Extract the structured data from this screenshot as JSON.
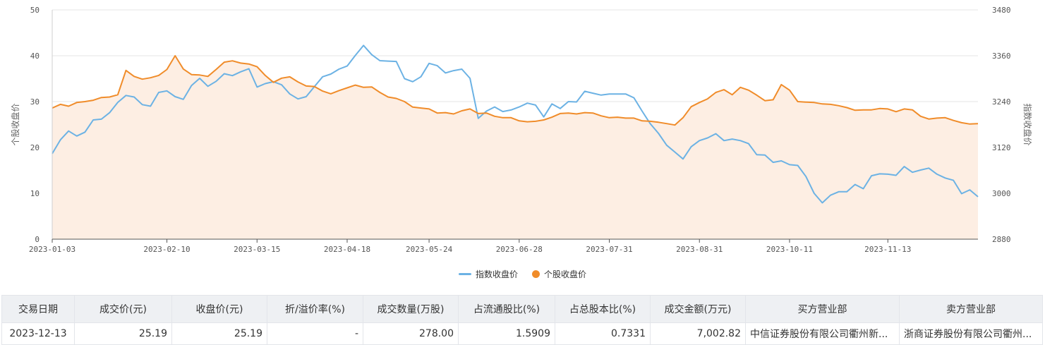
{
  "chart_data": {
    "type": "line",
    "x": [
      "2023-01-03",
      "2023-01-05",
      "2023-01-09",
      "2023-01-11",
      "2023-01-13",
      "2023-01-17",
      "2023-01-19",
      "2023-01-21",
      "2023-01-25",
      "2023-01-27",
      "2023-01-30",
      "2023-02-01",
      "2023-02-03",
      "2023-02-07",
      "2023-02-10",
      "2023-02-14",
      "2023-02-16",
      "2023-02-20",
      "2023-02-22",
      "2023-02-24",
      "2023-02-28",
      "2023-03-02",
      "2023-03-06",
      "2023-03-08",
      "2023-03-10",
      "2023-03-15",
      "2023-03-17",
      "2023-03-21",
      "2023-03-23",
      "2023-03-27",
      "2023-03-29",
      "2023-03-31",
      "2023-04-04",
      "2023-04-07",
      "2023-04-11",
      "2023-04-13",
      "2023-04-18",
      "2023-04-20",
      "2023-04-24",
      "2023-04-26",
      "2023-05-04",
      "2023-05-08",
      "2023-05-10",
      "2023-05-12",
      "2023-05-16",
      "2023-05-18",
      "2023-05-24",
      "2023-05-26",
      "2023-05-30",
      "2023-06-01",
      "2023-06-05",
      "2023-06-07",
      "2023-06-09",
      "2023-06-13",
      "2023-06-15",
      "2023-06-19",
      "2023-06-21",
      "2023-06-28",
      "2023-06-30",
      "2023-07-04",
      "2023-07-06",
      "2023-07-10",
      "2023-07-12",
      "2023-07-14",
      "2023-07-18",
      "2023-07-20",
      "2023-07-24",
      "2023-07-26",
      "2023-07-31",
      "2023-08-02",
      "2023-08-04",
      "2023-08-08",
      "2023-08-10",
      "2023-08-14",
      "2023-08-16",
      "2023-08-18",
      "2023-08-22",
      "2023-08-24",
      "2023-08-28",
      "2023-08-31",
      "2023-09-04",
      "2023-09-06",
      "2023-09-08",
      "2023-09-12",
      "2023-09-14",
      "2023-09-18",
      "2023-09-20",
      "2023-09-22",
      "2023-09-26",
      "2023-10-09",
      "2023-10-11",
      "2023-10-13",
      "2023-10-17",
      "2023-10-19",
      "2023-10-23",
      "2023-10-25",
      "2023-10-27",
      "2023-10-31",
      "2023-11-02",
      "2023-11-06",
      "2023-11-08",
      "2023-11-10",
      "2023-11-13",
      "2023-11-15",
      "2023-11-17",
      "2023-11-21",
      "2023-11-23",
      "2023-11-27",
      "2023-11-29",
      "2023-12-01",
      "2023-12-05",
      "2023-12-07",
      "2023-12-11",
      "2023-12-13"
    ],
    "series": [
      {
        "name": "指数收盘价",
        "axis": "right",
        "color": "#6cb2e4",
        "values": [
          3104,
          3140,
          3163,
          3150,
          3160,
          3192,
          3194,
          3211,
          3238,
          3256,
          3252,
          3232,
          3228,
          3264,
          3268,
          3253,
          3246,
          3282,
          3301,
          3280,
          3293,
          3313,
          3308,
          3318,
          3326,
          3278,
          3287,
          3292,
          3284,
          3260,
          3247,
          3253,
          3279,
          3305,
          3312,
          3325,
          3333,
          3361,
          3387,
          3363,
          3347,
          3346,
          3345,
          3300,
          3292,
          3305,
          3340,
          3334,
          3315,
          3321,
          3325,
          3301,
          3196,
          3215,
          3226,
          3214,
          3218,
          3226,
          3236,
          3231,
          3200,
          3234,
          3222,
          3240,
          3239,
          3267,
          3262,
          3257,
          3260,
          3260,
          3260,
          3250,
          3215,
          3182,
          3157,
          3126,
          3108,
          3090,
          3122,
          3138,
          3145,
          3156,
          3138,
          3142,
          3138,
          3130,
          3101,
          3100,
          3081,
          3085,
          3075,
          3073,
          3044,
          3000,
          2975,
          2995,
          3004,
          3004,
          3023,
          3012,
          3046,
          3051,
          3050,
          3047,
          3070,
          3055,
          3061,
          3066,
          3050,
          3040,
          3034,
          2999,
          3009,
          2991
        ]
      },
      {
        "name": "个股收盘价",
        "axis": "left",
        "color": "#f08c2a",
        "values": [
          28.6,
          29.4,
          29.0,
          29.8,
          30.0,
          30.3,
          30.9,
          31.0,
          31.5,
          36.8,
          35.5,
          34.9,
          35.2,
          35.7,
          37.0,
          40.0,
          37.1,
          35.9,
          35.8,
          35.5,
          37.0,
          38.6,
          38.9,
          38.4,
          38.2,
          37.6,
          35.7,
          34.2,
          35.1,
          35.4,
          34.3,
          33.4,
          33.3,
          32.3,
          31.7,
          32.4,
          33.0,
          33.6,
          33.1,
          33.2,
          32.0,
          31.0,
          30.7,
          30.0,
          28.8,
          28.6,
          28.4,
          27.5,
          27.6,
          27.3,
          28.0,
          28.4,
          27.4,
          27.5,
          26.8,
          26.5,
          26.5,
          25.8,
          25.6,
          25.7,
          26.0,
          26.6,
          27.4,
          27.5,
          27.3,
          27.6,
          27.5,
          26.9,
          26.5,
          26.6,
          26.4,
          26.4,
          25.8,
          25.7,
          25.5,
          25.2,
          24.9,
          26.5,
          28.9,
          29.8,
          30.6,
          32.0,
          32.6,
          31.5,
          33.1,
          32.5,
          31.4,
          30.2,
          30.4,
          33.7,
          32.5,
          30.0,
          29.9,
          29.8,
          29.5,
          29.4,
          29.1,
          28.7,
          28.1,
          28.2,
          28.2,
          28.5,
          28.4,
          27.8,
          28.4,
          28.2,
          26.8,
          26.2,
          26.4,
          26.5,
          25.9,
          25.4,
          25.1,
          25.19
        ]
      }
    ],
    "x_tick_labels": [
      "2023-01-03",
      "2023-02-10",
      "2023-03-15",
      "2023-04-18",
      "2023-05-24",
      "2023-06-28",
      "2023-07-31",
      "2023-08-31",
      "2023-10-11",
      "2023-11-13"
    ],
    "y_left": {
      "label": "个股收盘价",
      "ticks": [
        "0",
        "10",
        "20",
        "30",
        "40",
        "50"
      ],
      "ylim": [
        0,
        50
      ]
    },
    "y_right": {
      "label": "指数收盘价",
      "ticks": [
        "2880",
        "3000",
        "3120",
        "3240",
        "3360",
        "3480"
      ],
      "ylim": [
        2880,
        3480
      ]
    },
    "legend": [
      "指数收盘价",
      "个股收盘价"
    ],
    "legend_position": "bottom-center",
    "grid": true,
    "area_fill_color": "#fdeee3"
  },
  "table": {
    "headers": [
      "交易日期",
      "成交价(元)",
      "收盘价(元)",
      "折/溢价率(%)",
      "成交数量(万股)",
      "占流通股比(%)",
      "占总股本比(%)",
      "成交金额(万元)",
      "买方营业部",
      "卖方营业部"
    ],
    "rows": [
      [
        "2023-12-13",
        "25.19",
        "25.19",
        "-",
        "278.00",
        "1.5909",
        "0.7331",
        "7,002.82",
        "中信证券股份有限公司衢州新...",
        "浙商证券股份有限公司衢州..."
      ]
    ]
  }
}
